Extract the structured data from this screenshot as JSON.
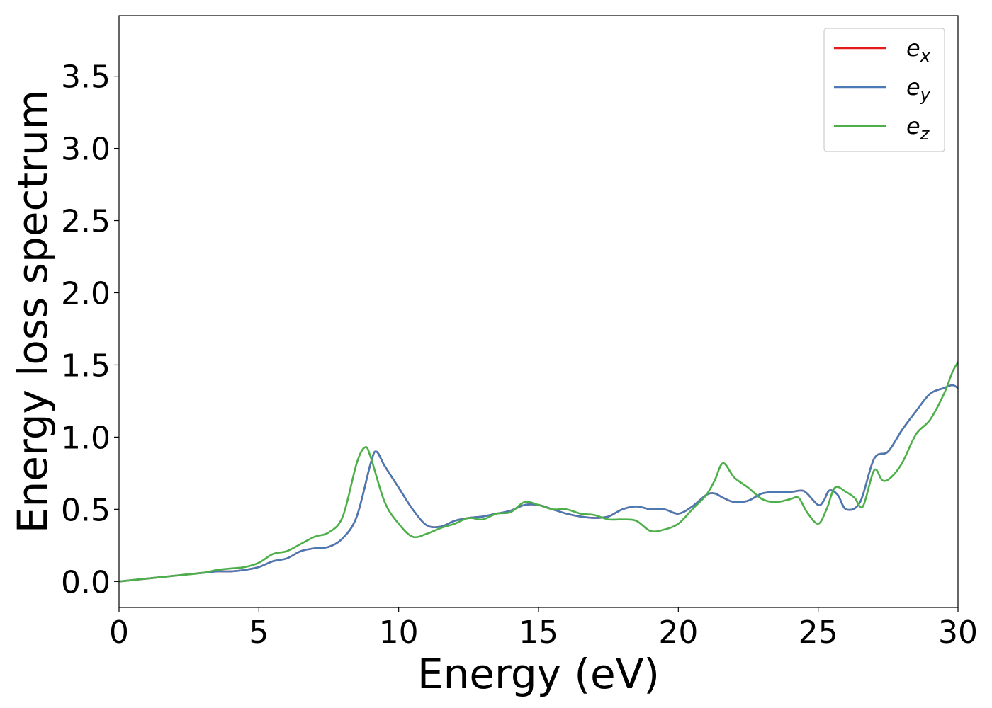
{
  "chart_data": {
    "type": "line",
    "title": "",
    "xlabel": "Energy (eV)",
    "ylabel": "Energy loss spectrum",
    "xlim": [
      0,
      30
    ],
    "ylim": [
      -0.18,
      3.92
    ],
    "xticks": [
      0,
      5,
      10,
      15,
      20,
      25,
      30
    ],
    "xtick_labels": [
      "0",
      "5",
      "10",
      "15",
      "20",
      "25",
      "30"
    ],
    "yticks": [
      0.0,
      0.5,
      1.0,
      1.5,
      2.0,
      2.5,
      3.0,
      3.5
    ],
    "ytick_labels": [
      "0.0",
      "0.5",
      "1.0",
      "1.5",
      "2.0",
      "2.5",
      "3.0",
      "3.5"
    ],
    "grid": false,
    "legend_position": "top-right",
    "series": [
      {
        "name": "e",
        "subscript": "x",
        "color": "#e41a1c",
        "x": [
          0,
          1,
          2,
          3,
          3.5,
          4,
          4.5,
          5,
          5.5,
          6,
          6.5,
          7,
          7.5,
          8,
          8.5,
          9,
          9.2,
          9.5,
          10,
          10.5,
          11,
          11.5,
          12,
          12.5,
          13,
          13.5,
          14,
          14.5,
          15,
          15.5,
          16,
          16.5,
          17,
          17.5,
          18,
          18.5,
          19,
          19.5,
          20,
          20.5,
          21,
          21.3,
          21.6,
          22,
          22.5,
          23,
          23.5,
          24,
          24.4,
          24.6,
          25,
          25.2,
          25.4,
          25.7,
          26,
          26.5,
          27,
          27.5,
          28,
          28.5,
          29,
          29.5,
          29.8,
          30
        ],
        "y": [
          0.0,
          0.02,
          0.04,
          0.06,
          0.07,
          0.07,
          0.08,
          0.1,
          0.14,
          0.16,
          0.21,
          0.23,
          0.24,
          0.3,
          0.45,
          0.82,
          0.9,
          0.8,
          0.65,
          0.5,
          0.39,
          0.38,
          0.42,
          0.44,
          0.45,
          0.47,
          0.49,
          0.53,
          0.53,
          0.5,
          0.47,
          0.45,
          0.44,
          0.45,
          0.5,
          0.52,
          0.5,
          0.5,
          0.47,
          0.52,
          0.6,
          0.61,
          0.58,
          0.55,
          0.56,
          0.61,
          0.62,
          0.62,
          0.63,
          0.61,
          0.53,
          0.56,
          0.63,
          0.6,
          0.5,
          0.55,
          0.85,
          0.9,
          1.05,
          1.18,
          1.3,
          1.34,
          1.36,
          1.34
        ]
      },
      {
        "name": "e",
        "subscript": "y",
        "color": "#4a7ab4",
        "x": [
          0,
          1,
          2,
          3,
          3.5,
          4,
          4.5,
          5,
          5.5,
          6,
          6.5,
          7,
          7.5,
          8,
          8.5,
          9,
          9.2,
          9.5,
          10,
          10.5,
          11,
          11.5,
          12,
          12.5,
          13,
          13.5,
          14,
          14.5,
          15,
          15.5,
          16,
          16.5,
          17,
          17.5,
          18,
          18.5,
          19,
          19.5,
          20,
          20.5,
          21,
          21.3,
          21.6,
          22,
          22.5,
          23,
          23.5,
          24,
          24.4,
          24.6,
          25,
          25.2,
          25.4,
          25.7,
          26,
          26.5,
          27,
          27.5,
          28,
          28.5,
          29,
          29.5,
          29.8,
          30
        ],
        "y": [
          0.0,
          0.02,
          0.04,
          0.06,
          0.07,
          0.07,
          0.08,
          0.1,
          0.14,
          0.16,
          0.21,
          0.23,
          0.24,
          0.3,
          0.45,
          0.82,
          0.9,
          0.8,
          0.65,
          0.5,
          0.39,
          0.38,
          0.42,
          0.44,
          0.45,
          0.47,
          0.49,
          0.53,
          0.53,
          0.5,
          0.47,
          0.45,
          0.44,
          0.45,
          0.5,
          0.52,
          0.5,
          0.5,
          0.47,
          0.52,
          0.6,
          0.61,
          0.58,
          0.55,
          0.56,
          0.61,
          0.62,
          0.62,
          0.63,
          0.61,
          0.53,
          0.56,
          0.63,
          0.6,
          0.5,
          0.55,
          0.85,
          0.9,
          1.05,
          1.18,
          1.3,
          1.34,
          1.36,
          1.34
        ]
      },
      {
        "name": "e",
        "subscript": "z",
        "color": "#4daf4a",
        "x": [
          0,
          1,
          2,
          3,
          3.5,
          4,
          4.5,
          5,
          5.5,
          6,
          6.5,
          7,
          7.5,
          8,
          8.5,
          8.8,
          9,
          9.5,
          10,
          10.5,
          11,
          11.5,
          12,
          12.5,
          13,
          13.5,
          14,
          14.5,
          15,
          15.5,
          16,
          16.5,
          17,
          17.5,
          18,
          18.5,
          19,
          19.5,
          20,
          20.5,
          21,
          21.3,
          21.6,
          22,
          22.5,
          23,
          23.5,
          24,
          24.3,
          24.6,
          25,
          25.3,
          25.6,
          26,
          26.3,
          26.6,
          27,
          27.3,
          27.6,
          28,
          28.5,
          29,
          29.5,
          29.8,
          30
        ],
        "y": [
          0.0,
          0.02,
          0.04,
          0.06,
          0.08,
          0.09,
          0.1,
          0.13,
          0.19,
          0.21,
          0.26,
          0.31,
          0.34,
          0.45,
          0.82,
          0.93,
          0.86,
          0.55,
          0.4,
          0.31,
          0.33,
          0.37,
          0.4,
          0.44,
          0.43,
          0.47,
          0.48,
          0.55,
          0.53,
          0.5,
          0.5,
          0.47,
          0.46,
          0.43,
          0.43,
          0.42,
          0.35,
          0.36,
          0.4,
          0.5,
          0.6,
          0.7,
          0.82,
          0.72,
          0.65,
          0.57,
          0.55,
          0.57,
          0.58,
          0.48,
          0.4,
          0.5,
          0.65,
          0.62,
          0.58,
          0.52,
          0.77,
          0.7,
          0.72,
          0.82,
          1.02,
          1.12,
          1.3,
          1.45,
          1.52
        ]
      }
    ]
  }
}
